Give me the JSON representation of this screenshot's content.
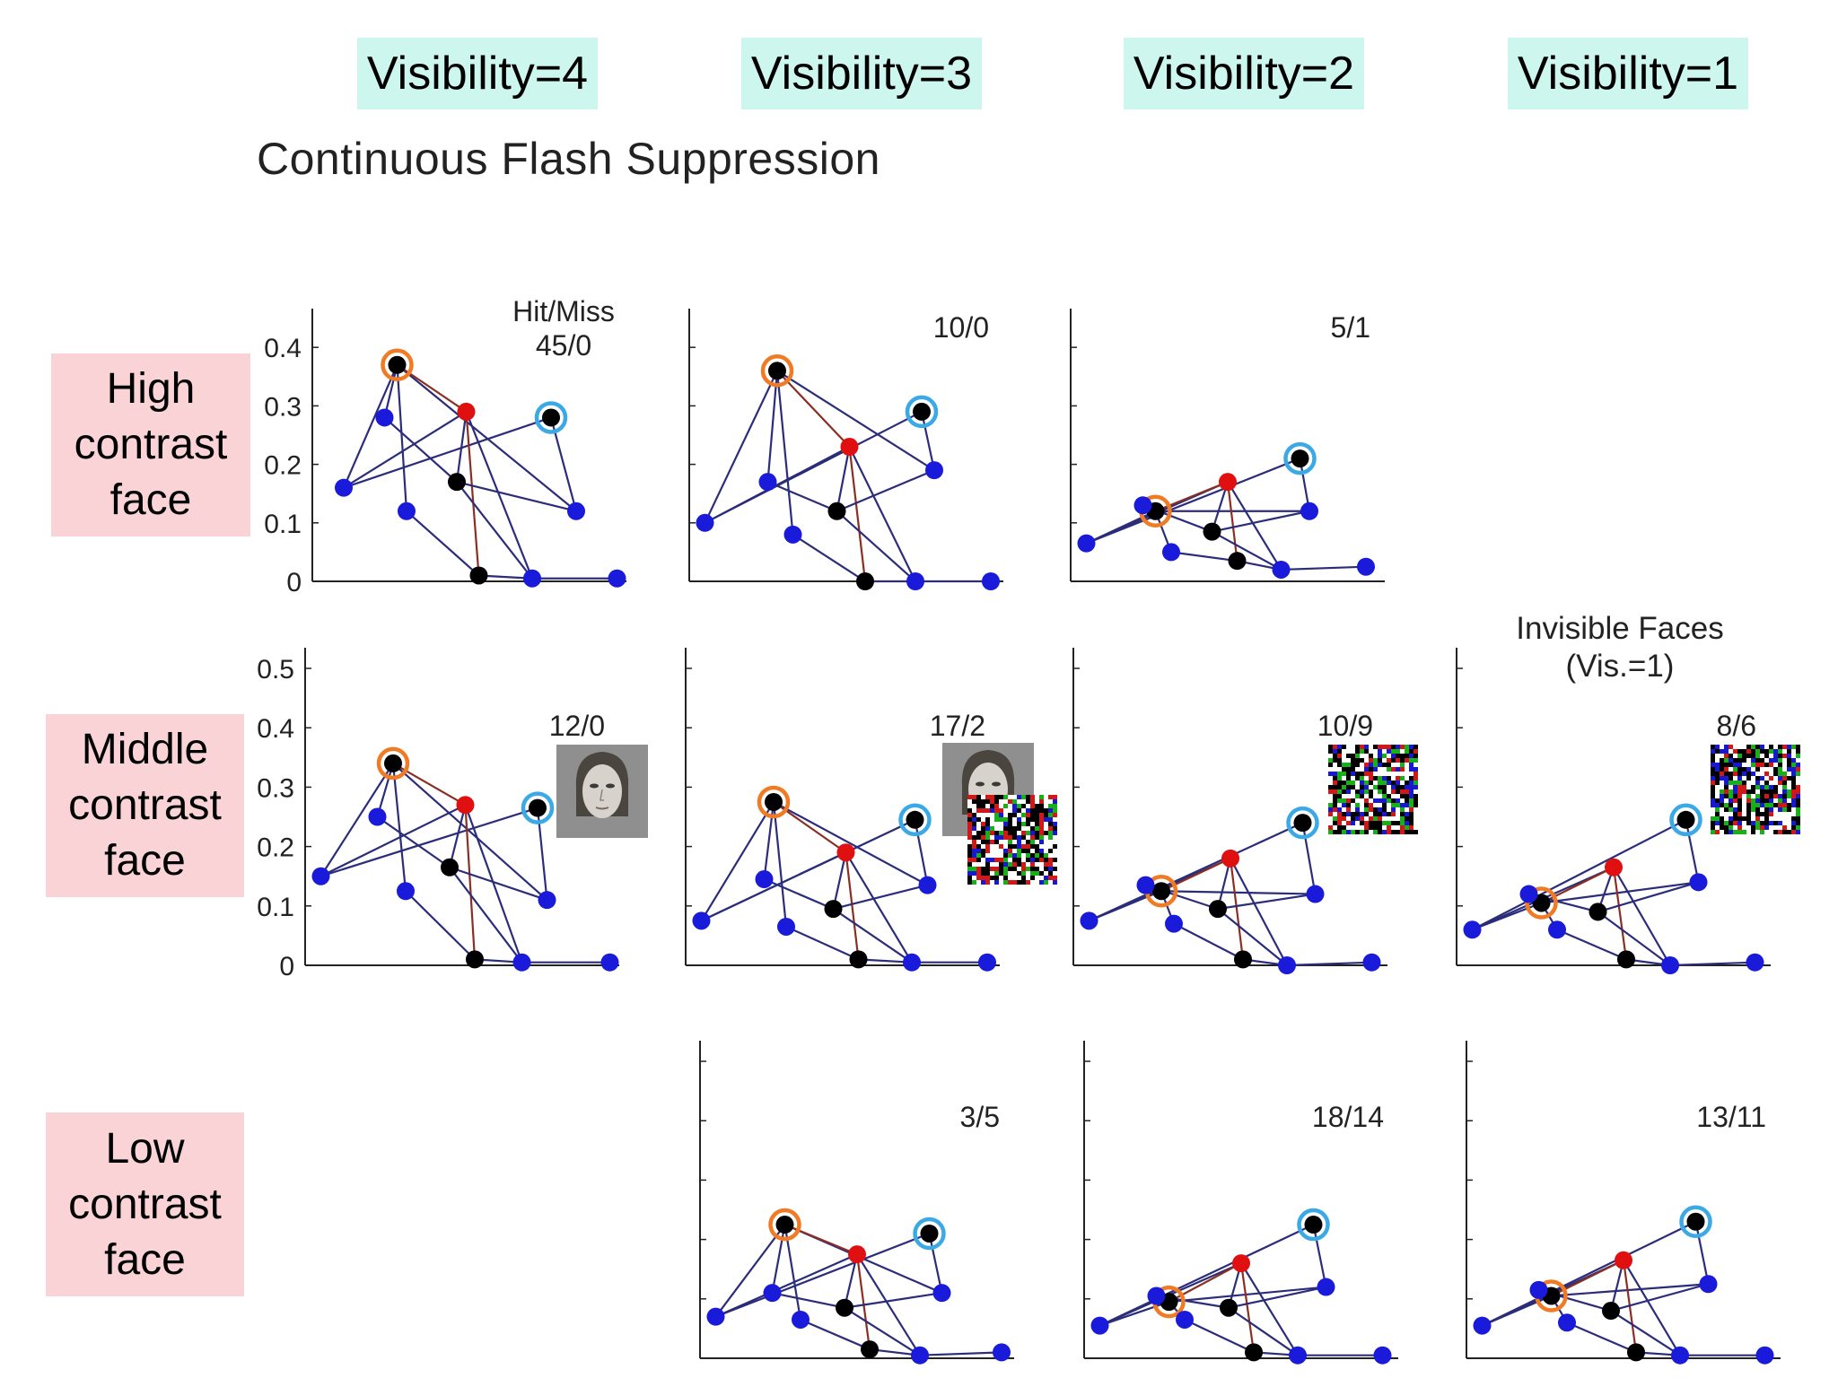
{
  "columns": [
    "Visibility=4",
    "Visibility=3",
    "Visibility=2",
    "Visibility=1"
  ],
  "title": "Continuous Flash Suppression",
  "rows": [
    [
      "High",
      "contrast",
      "face"
    ],
    [
      "Middle",
      "contrast",
      "face"
    ],
    [
      "Low",
      "contrast",
      "face"
    ]
  ],
  "colors": {
    "header_bg": "#cdf6ee",
    "row_bg": "#fad3d6",
    "node_blue": "#1a1adb",
    "node_black": "#000000",
    "node_red": "#e01010",
    "ring_orange": "#f07b24",
    "ring_cyan": "#3aa9e6",
    "edge_navy": "#2b2d7a",
    "edge_brown": "#8a2f22"
  },
  "invisible_note": [
    "Invisible Faces",
    "(Vis.=1)"
  ],
  "chart_data": {
    "type": "scatter",
    "graph_edges": [
      [
        0,
        1
      ],
      [
        0,
        2
      ],
      [
        0,
        3
      ],
      [
        1,
        4
      ],
      [
        1,
        2
      ],
      [
        1,
        5
      ],
      [
        1,
        7
      ],
      [
        2,
        8
      ],
      [
        2,
        9
      ],
      [
        2,
        6
      ],
      [
        3,
        4
      ],
      [
        4,
        6
      ],
      [
        5,
        6
      ],
      [
        6,
        9
      ],
      [
        7,
        8
      ],
      [
        8,
        9
      ],
      [
        9,
        10
      ]
    ],
    "node_colors": [
      "blue",
      "black",
      "red",
      "black",
      "blue",
      "blue",
      "black",
      "blue",
      "black",
      "blue",
      "blue"
    ],
    "node_rings": [
      null,
      "orange",
      null,
      "cyan",
      null,
      null,
      null,
      null,
      null,
      null,
      null
    ],
    "panels": [
      {
        "row": 0,
        "col": 0,
        "label": [
          "Hit/Miss",
          "45/0"
        ],
        "ylim": [
          0,
          0.45
        ],
        "yticks": [
          "0",
          "0.1",
          "0.2",
          "0.3",
          "0.4"
        ],
        "nodes": [
          [
            0.1,
            0.16
          ],
          [
            0.27,
            0.37
          ],
          [
            0.49,
            0.29
          ],
          [
            0.76,
            0.28
          ],
          [
            0.84,
            0.12
          ],
          [
            0.23,
            0.28
          ],
          [
            0.46,
            0.17
          ],
          [
            0.3,
            0.12
          ],
          [
            0.53,
            0.01
          ],
          [
            0.7,
            0.005
          ],
          [
            0.97,
            0.005
          ]
        ]
      },
      {
        "row": 0,
        "col": 1,
        "label": [
          "10/0"
        ],
        "ylim": [
          0,
          0.45
        ],
        "yticks": [],
        "nodes": [
          [
            0.05,
            0.1
          ],
          [
            0.28,
            0.36
          ],
          [
            0.51,
            0.23
          ],
          [
            0.74,
            0.29
          ],
          [
            0.78,
            0.19
          ],
          [
            0.25,
            0.17
          ],
          [
            0.47,
            0.12
          ],
          [
            0.33,
            0.08
          ],
          [
            0.56,
            0.0
          ],
          [
            0.72,
            0.0
          ],
          [
            0.96,
            0.0
          ]
        ]
      },
      {
        "row": 0,
        "col": 2,
        "label": [
          "5/1"
        ],
        "ylim": [
          0,
          0.45
        ],
        "yticks": [],
        "nodes": [
          [
            0.05,
            0.065
          ],
          [
            0.27,
            0.12
          ],
          [
            0.5,
            0.17
          ],
          [
            0.73,
            0.21
          ],
          [
            0.76,
            0.12
          ],
          [
            0.23,
            0.13
          ],
          [
            0.45,
            0.085
          ],
          [
            0.32,
            0.05
          ],
          [
            0.53,
            0.035
          ],
          [
            0.67,
            0.02
          ],
          [
            0.94,
            0.025
          ]
        ]
      },
      {
        "row": 1,
        "col": 0,
        "label": [
          "12/0"
        ],
        "ylim": [
          0,
          0.55
        ],
        "yticks": [
          "0",
          "0.1",
          "0.2",
          "0.3",
          "0.4",
          "0.5"
        ],
        "nodes": [
          [
            0.05,
            0.15
          ],
          [
            0.28,
            0.34
          ],
          [
            0.51,
            0.27
          ],
          [
            0.74,
            0.265
          ],
          [
            0.77,
            0.11
          ],
          [
            0.23,
            0.25
          ],
          [
            0.46,
            0.165
          ],
          [
            0.32,
            0.125
          ],
          [
            0.54,
            0.01
          ],
          [
            0.69,
            0.005
          ],
          [
            0.97,
            0.005
          ]
        ]
      },
      {
        "row": 1,
        "col": 1,
        "label": [
          "17/2"
        ],
        "ylim": [
          0,
          0.55
        ],
        "yticks": [],
        "nodes": [
          [
            0.05,
            0.075
          ],
          [
            0.28,
            0.275
          ],
          [
            0.51,
            0.19
          ],
          [
            0.73,
            0.245
          ],
          [
            0.77,
            0.135
          ],
          [
            0.25,
            0.145
          ],
          [
            0.47,
            0.095
          ],
          [
            0.32,
            0.065
          ],
          [
            0.55,
            0.01
          ],
          [
            0.72,
            0.005
          ],
          [
            0.96,
            0.005
          ]
        ]
      },
      {
        "row": 1,
        "col": 2,
        "label": [
          "10/9"
        ],
        "ylim": [
          0,
          0.55
        ],
        "yticks": [],
        "nodes": [
          [
            0.05,
            0.075
          ],
          [
            0.28,
            0.125
          ],
          [
            0.5,
            0.18
          ],
          [
            0.73,
            0.24
          ],
          [
            0.77,
            0.12
          ],
          [
            0.23,
            0.135
          ],
          [
            0.46,
            0.095
          ],
          [
            0.32,
            0.07
          ],
          [
            0.54,
            0.01
          ],
          [
            0.68,
            0.0
          ],
          [
            0.95,
            0.005
          ]
        ]
      },
      {
        "row": 1,
        "col": 3,
        "label": [
          "8/6"
        ],
        "ylim": [
          0,
          0.55
        ],
        "yticks": [],
        "nodes": [
          [
            0.05,
            0.06
          ],
          [
            0.27,
            0.105
          ],
          [
            0.5,
            0.165
          ],
          [
            0.73,
            0.245
          ],
          [
            0.77,
            0.14
          ],
          [
            0.23,
            0.12
          ],
          [
            0.45,
            0.09
          ],
          [
            0.32,
            0.06
          ],
          [
            0.54,
            0.01
          ],
          [
            0.68,
            0.0
          ],
          [
            0.95,
            0.005
          ]
        ]
      },
      {
        "row": 2,
        "col": 1,
        "label": [
          "3/5"
        ],
        "ylim": [
          0,
          0.55
        ],
        "yticks": [],
        "nodes": [
          [
            0.05,
            0.07
          ],
          [
            0.27,
            0.225
          ],
          [
            0.5,
            0.175
          ],
          [
            0.73,
            0.21
          ],
          [
            0.77,
            0.11
          ],
          [
            0.23,
            0.11
          ],
          [
            0.46,
            0.085
          ],
          [
            0.32,
            0.065
          ],
          [
            0.54,
            0.015
          ],
          [
            0.7,
            0.005
          ],
          [
            0.96,
            0.01
          ]
        ]
      },
      {
        "row": 2,
        "col": 2,
        "label": [
          "18/14"
        ],
        "ylim": [
          0,
          0.55
        ],
        "yticks": [],
        "nodes": [
          [
            0.05,
            0.055
          ],
          [
            0.27,
            0.095
          ],
          [
            0.5,
            0.16
          ],
          [
            0.73,
            0.225
          ],
          [
            0.77,
            0.12
          ],
          [
            0.23,
            0.105
          ],
          [
            0.46,
            0.085
          ],
          [
            0.32,
            0.065
          ],
          [
            0.54,
            0.01
          ],
          [
            0.68,
            0.005
          ],
          [
            0.95,
            0.005
          ]
        ]
      },
      {
        "row": 2,
        "col": 3,
        "label": [
          "13/11"
        ],
        "ylim": [
          0,
          0.55
        ],
        "yticks": [],
        "nodes": [
          [
            0.05,
            0.055
          ],
          [
            0.27,
            0.105
          ],
          [
            0.5,
            0.165
          ],
          [
            0.73,
            0.23
          ],
          [
            0.77,
            0.125
          ],
          [
            0.23,
            0.115
          ],
          [
            0.46,
            0.08
          ],
          [
            0.32,
            0.06
          ],
          [
            0.54,
            0.01
          ],
          [
            0.68,
            0.005
          ],
          [
            0.95,
            0.005
          ]
        ]
      }
    ]
  }
}
